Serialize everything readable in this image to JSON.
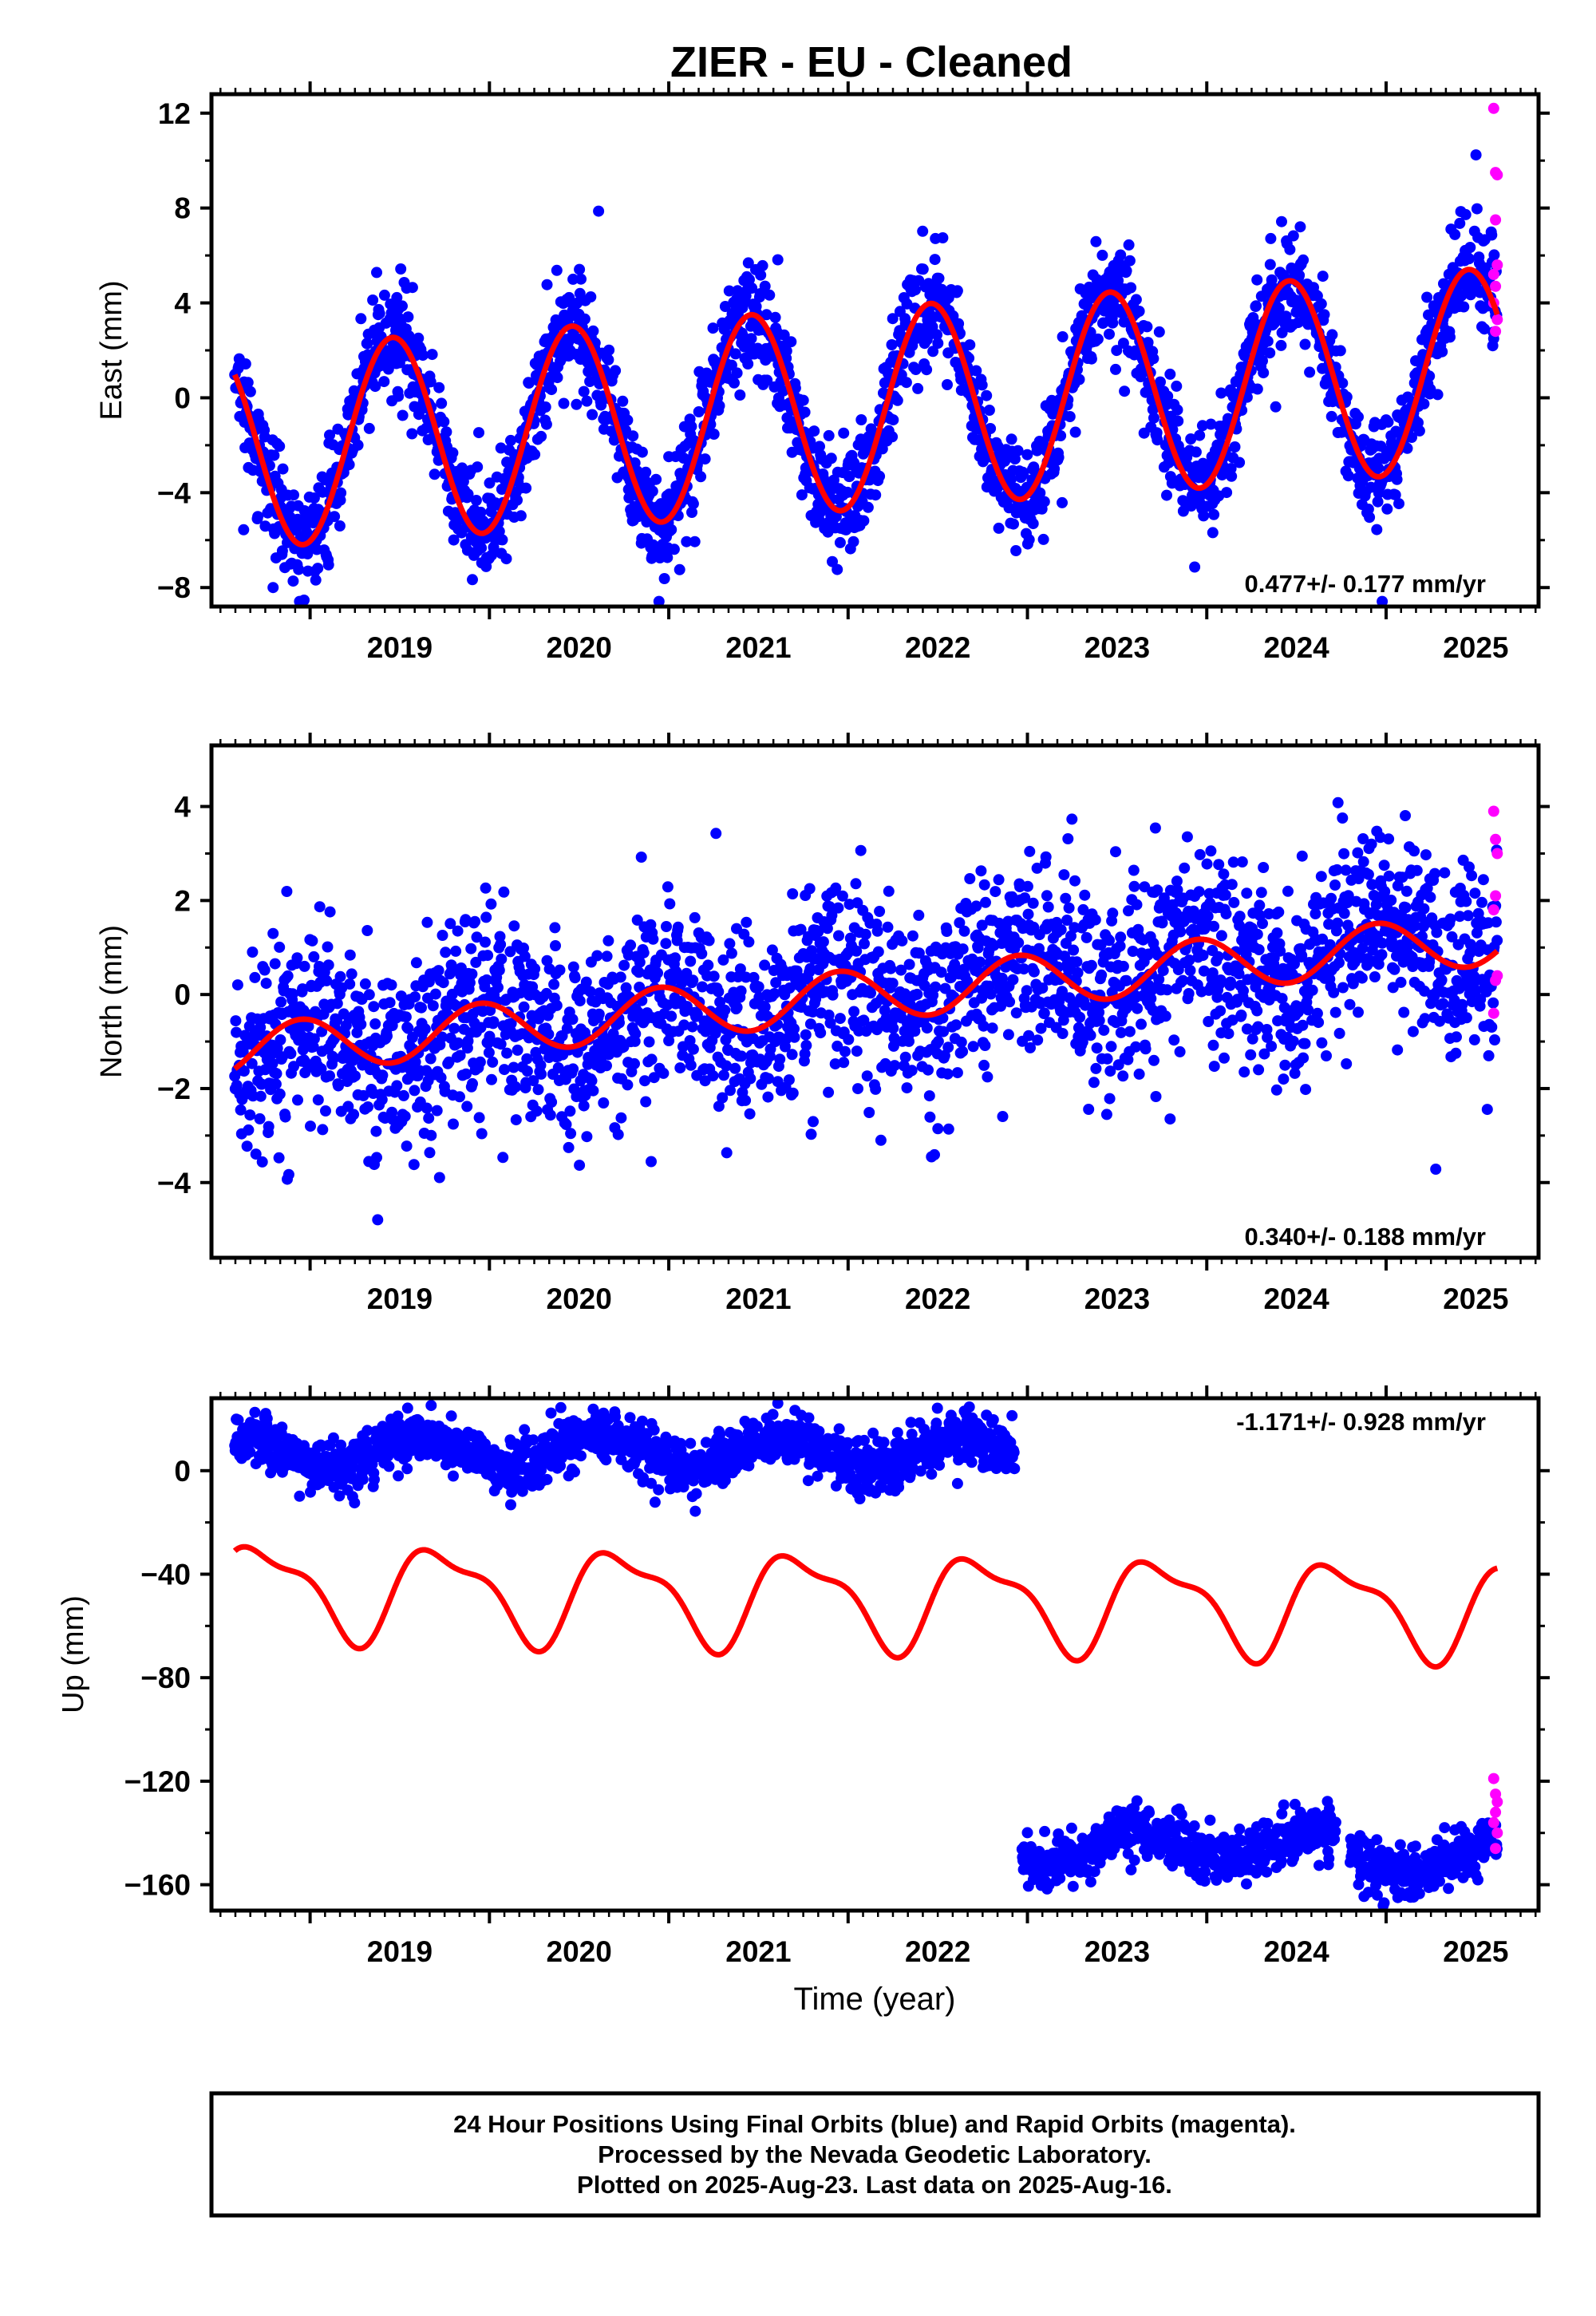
{
  "title": "ZIER  - EU - Cleaned",
  "footer": {
    "line1": "24 Hour Positions Using Final Orbits (blue) and Rapid Orbits (magenta).",
    "line2": "Processed by the Nevada Geodetic Laboratory.",
    "line3": "Plotted on 2025-Aug-23. Last data on 2025-Aug-16."
  },
  "colors": {
    "final": "#0000ff",
    "rapid": "#ff00ff",
    "model": "#ff0000",
    "axis": "#000000"
  },
  "chart_data": [
    {
      "type": "scatter",
      "ylabel": "East (mm)",
      "rate_label": "0.477+/- 0.177 mm/yr",
      "xlim": [
        2018.45,
        2025.85
      ],
      "ylim": [
        -8.8,
        12.8
      ],
      "xticks": [
        2019,
        2020,
        2021,
        2022,
        2023,
        2024,
        2025
      ],
      "yticks": [
        -8,
        -4,
        0,
        4,
        8,
        12
      ],
      "ytick_labels": [
        "−8",
        "−4",
        "0",
        "4",
        "8",
        "12"
      ],
      "data_start": 2018.58,
      "data_end": 2025.62,
      "model": {
        "rate": 0.477,
        "intercept_at_2018": -2.4,
        "annual_amplitude": 4.25,
        "peak_phase": 0.46,
        "semiannual_amplitude": 0.0,
        "semiannual_phase": 0.0,
        "offsets": []
      },
      "scatter_noise": 1.1,
      "rapid_points": [
        [
          2025.6,
          12.2
        ],
        [
          2025.61,
          9.5
        ],
        [
          2025.62,
          9.4
        ],
        [
          2025.61,
          7.5
        ],
        [
          2025.62,
          5.6
        ],
        [
          2025.6,
          5.2
        ],
        [
          2025.61,
          4.7
        ],
        [
          2025.62,
          3.3
        ],
        [
          2025.61,
          2.8
        ],
        [
          2025.6,
          4.0
        ]
      ]
    },
    {
      "type": "scatter",
      "ylabel": "North (mm)",
      "rate_label": "0.340+/- 0.188 mm/yr",
      "xlim": [
        2018.45,
        2025.85
      ],
      "ylim": [
        -5.6,
        5.3
      ],
      "xticks": [
        2019,
        2020,
        2021,
        2022,
        2023,
        2024,
        2025
      ],
      "yticks": [
        -4,
        -2,
        0,
        2,
        4
      ],
      "ytick_labels": [
        "−4",
        "−2",
        "0",
        "2",
        "4"
      ],
      "data_start": 2018.58,
      "data_end": 2025.62,
      "model": {
        "rate": 0.34,
        "intercept_at_2018": -1.4,
        "annual_amplitude": 0.55,
        "peak_phase": 0.95,
        "semiannual_amplitude": 0.0,
        "semiannual_phase": 0.0,
        "offsets": []
      },
      "scatter_noise": 1.0,
      "rapid_points": [
        [
          2025.6,
          3.9
        ],
        [
          2025.61,
          3.3
        ],
        [
          2025.62,
          3.0
        ],
        [
          2025.61,
          2.1
        ],
        [
          2025.6,
          1.8
        ],
        [
          2025.62,
          0.4
        ],
        [
          2025.61,
          0.3
        ],
        [
          2025.6,
          -0.4
        ]
      ]
    },
    {
      "type": "scatter",
      "ylabel": "Up (mm)",
      "xlabel": "Time (year)",
      "rate_label": "-1.171+/- 0.928 mm/yr",
      "xlim": [
        2018.45,
        2025.85
      ],
      "ylim": [
        -170,
        28
      ],
      "xticks": [
        2019,
        2020,
        2021,
        2022,
        2023,
        2024,
        2025
      ],
      "yticks": [
        -160,
        -120,
        -80,
        -40,
        0
      ],
      "ytick_labels": [
        "−160",
        "−120",
        "−80",
        "−40",
        "0"
      ],
      "data_segments": [
        [
          2018.58,
          2022.93,
          7.0
        ],
        [
          2022.97,
          2024.72,
          -145.0
        ],
        [
          2024.8,
          2025.62,
          -150.0
        ]
      ],
      "model": {
        "rate": -1.171,
        "intercept_at_2018": -45.0,
        "annual_amplitude": 17.0,
        "peak_phase": 0.74,
        "semiannual_amplitude": 6.0,
        "semiannual_phase": 0.55,
        "offsets": []
      },
      "scatter_noise": 5.0,
      "rapid_points": [
        [
          2025.6,
          -119
        ],
        [
          2025.61,
          -125
        ],
        [
          2025.62,
          -128
        ],
        [
          2025.61,
          -132
        ],
        [
          2025.6,
          -136
        ],
        [
          2025.62,
          -140
        ],
        [
          2025.61,
          -146
        ]
      ]
    }
  ]
}
